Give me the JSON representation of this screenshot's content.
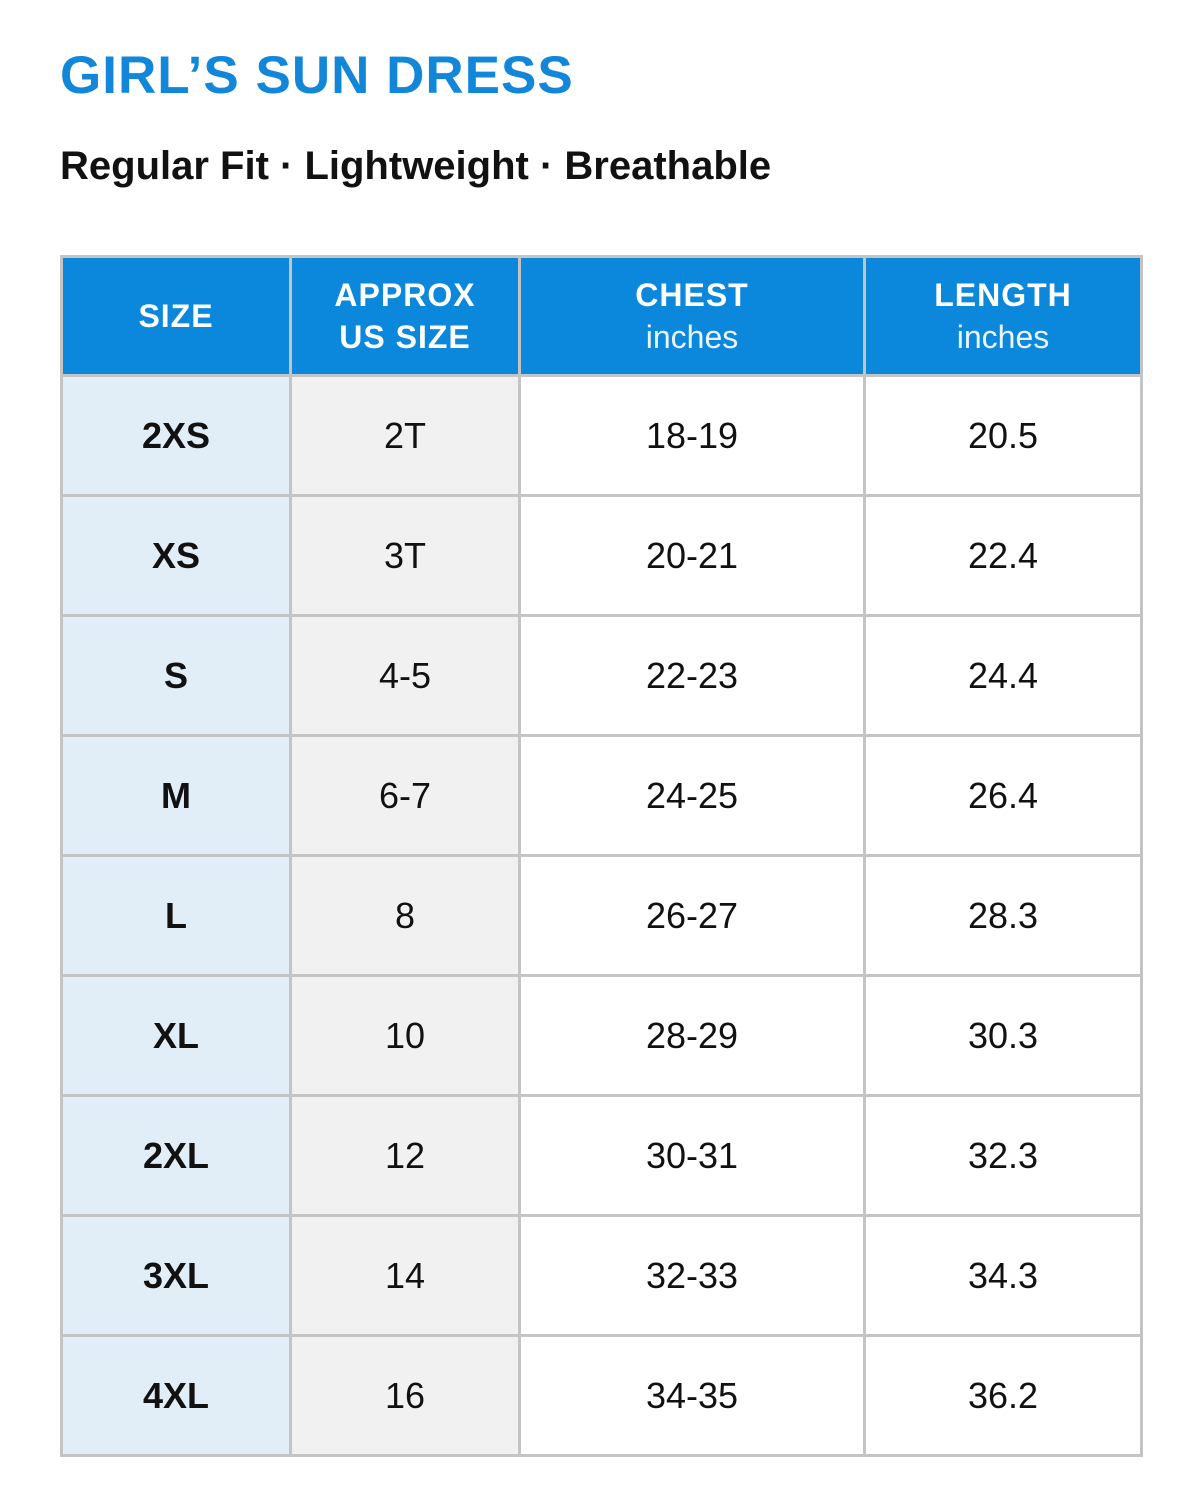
{
  "header": {
    "title": "GIRL’S SUN DRESS",
    "subtitle": "Regular Fit · Lightweight · Breathable"
  },
  "colors": {
    "accent": "#1287d9",
    "header_bg": "#0b87dc",
    "size_col_bg": "#e1edf7",
    "us_col_bg": "#f1f1f1",
    "grid": "#c4c4c4"
  },
  "table": {
    "headers": {
      "size": "SIZE",
      "us_line1": "APPROX",
      "us_line2": "US SIZE",
      "chest": "CHEST",
      "chest_unit": "inches",
      "length": "LENGTH",
      "length_unit": "inches"
    },
    "rows": [
      {
        "size": "2XS",
        "us": "2T",
        "chest": "18-19",
        "length": "20.5"
      },
      {
        "size": "XS",
        "us": "3T",
        "chest": "20-21",
        "length": "22.4"
      },
      {
        "size": "S",
        "us": "4-5",
        "chest": "22-23",
        "length": "24.4"
      },
      {
        "size": "M",
        "us": "6-7",
        "chest": "24-25",
        "length": "26.4"
      },
      {
        "size": "L",
        "us": "8",
        "chest": "26-27",
        "length": "28.3"
      },
      {
        "size": "XL",
        "us": "10",
        "chest": "28-29",
        "length": "30.3"
      },
      {
        "size": "2XL",
        "us": "12",
        "chest": "30-31",
        "length": "32.3"
      },
      {
        "size": "3XL",
        "us": "14",
        "chest": "32-33",
        "length": "34.3"
      },
      {
        "size": "4XL",
        "us": "16",
        "chest": "34-35",
        "length": "36.2"
      }
    ]
  }
}
